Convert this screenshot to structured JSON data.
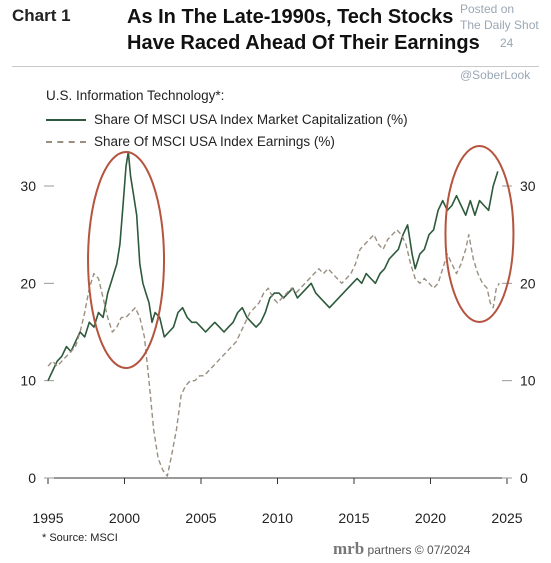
{
  "header": {
    "chart_number": "Chart 1",
    "title_line1": "As In The Late-1990s, Tech Stocks",
    "title_line2": "Have Raced Ahead Of Their Earnings"
  },
  "watermark": {
    "posted_on": "Posted on",
    "publisher": "The Daily Shot",
    "date_frag": "24",
    "handle": "@SoberLook"
  },
  "footer": {
    "source": "* Source: MSCI",
    "brand": "mrb",
    "credit": "partners © 07/2024"
  },
  "chart_data": {
    "type": "line",
    "legend_title": "U.S. Information Technology*:",
    "x_ticks": [
      "1995",
      "2000",
      "2005",
      "2010",
      "2015",
      "2020",
      "2025"
    ],
    "y_ticks_left": [
      "0",
      "10",
      "20",
      "30"
    ],
    "y_ticks_right": [
      "0",
      "10",
      "20",
      "30"
    ],
    "xlim": [
      1995,
      2025
    ],
    "ylim": [
      0,
      34
    ],
    "grid": false,
    "legend_placement": "top-left",
    "annotations": [
      "red ellipse around late-1990s peak",
      "red ellipse around 2022-2024"
    ],
    "series": [
      {
        "name": "Share Of MSCI USA Index Market Capitalization (%)",
        "style": "solid",
        "color": "#2d5a3c",
        "points": [
          [
            1995.0,
            10.0
          ],
          [
            1995.3,
            11.0
          ],
          [
            1995.6,
            12.0
          ],
          [
            1995.9,
            12.5
          ],
          [
            1996.2,
            13.5
          ],
          [
            1996.5,
            13.0
          ],
          [
            1996.8,
            14.0
          ],
          [
            1997.1,
            15.0
          ],
          [
            1997.4,
            14.5
          ],
          [
            1997.7,
            16.0
          ],
          [
            1998.0,
            15.5
          ],
          [
            1998.3,
            17.0
          ],
          [
            1998.6,
            16.5
          ],
          [
            1998.9,
            19.0
          ],
          [
            1999.2,
            20.5
          ],
          [
            1999.5,
            22.0
          ],
          [
            1999.7,
            24.0
          ],
          [
            1999.9,
            28.0
          ],
          [
            2000.1,
            32.0
          ],
          [
            2000.25,
            33.5
          ],
          [
            2000.4,
            31.0
          ],
          [
            2000.6,
            29.0
          ],
          [
            2000.8,
            27.0
          ],
          [
            2001.0,
            22.0
          ],
          [
            2001.2,
            20.0
          ],
          [
            2001.4,
            19.0
          ],
          [
            2001.6,
            18.0
          ],
          [
            2001.8,
            16.0
          ],
          [
            2002.0,
            17.0
          ],
          [
            2002.3,
            16.5
          ],
          [
            2002.6,
            14.5
          ],
          [
            2002.9,
            15.0
          ],
          [
            2003.2,
            15.5
          ],
          [
            2003.5,
            17.0
          ],
          [
            2003.8,
            17.5
          ],
          [
            2004.1,
            16.5
          ],
          [
            2004.4,
            16.0
          ],
          [
            2004.7,
            16.0
          ],
          [
            2005.0,
            15.5
          ],
          [
            2005.3,
            15.0
          ],
          [
            2005.6,
            15.5
          ],
          [
            2005.9,
            16.0
          ],
          [
            2006.2,
            15.5
          ],
          [
            2006.5,
            15.0
          ],
          [
            2006.8,
            15.5
          ],
          [
            2007.1,
            16.0
          ],
          [
            2007.4,
            17.0
          ],
          [
            2007.7,
            17.5
          ],
          [
            2008.0,
            16.5
          ],
          [
            2008.3,
            16.0
          ],
          [
            2008.6,
            15.5
          ],
          [
            2008.9,
            16.0
          ],
          [
            2009.2,
            17.0
          ],
          [
            2009.5,
            18.5
          ],
          [
            2009.8,
            19.0
          ],
          [
            2010.1,
            19.0
          ],
          [
            2010.4,
            18.5
          ],
          [
            2010.7,
            19.0
          ],
          [
            2011.0,
            19.5
          ],
          [
            2011.3,
            18.5
          ],
          [
            2011.6,
            19.0
          ],
          [
            2011.9,
            19.5
          ],
          [
            2012.2,
            20.0
          ],
          [
            2012.5,
            19.0
          ],
          [
            2012.8,
            18.5
          ],
          [
            2013.1,
            18.0
          ],
          [
            2013.4,
            17.5
          ],
          [
            2013.7,
            18.0
          ],
          [
            2014.0,
            18.5
          ],
          [
            2014.3,
            19.0
          ],
          [
            2014.6,
            19.5
          ],
          [
            2014.9,
            20.0
          ],
          [
            2015.2,
            20.5
          ],
          [
            2015.5,
            20.0
          ],
          [
            2015.8,
            21.0
          ],
          [
            2016.1,
            20.5
          ],
          [
            2016.4,
            20.0
          ],
          [
            2016.7,
            21.0
          ],
          [
            2017.0,
            21.5
          ],
          [
            2017.3,
            22.5
          ],
          [
            2017.6,
            23.0
          ],
          [
            2017.9,
            23.5
          ],
          [
            2018.2,
            25.0
          ],
          [
            2018.5,
            26.0
          ],
          [
            2018.8,
            23.0
          ],
          [
            2019.0,
            21.5
          ],
          [
            2019.3,
            23.0
          ],
          [
            2019.6,
            23.5
          ],
          [
            2019.9,
            25.0
          ],
          [
            2020.2,
            25.5
          ],
          [
            2020.5,
            27.5
          ],
          [
            2020.8,
            28.5
          ],
          [
            2021.1,
            27.5
          ],
          [
            2021.4,
            28.0
          ],
          [
            2021.7,
            29.0
          ],
          [
            2022.0,
            28.0
          ],
          [
            2022.3,
            27.0
          ],
          [
            2022.6,
            28.5
          ],
          [
            2022.9,
            27.0
          ],
          [
            2023.2,
            28.5
          ],
          [
            2023.5,
            28.0
          ],
          [
            2023.8,
            27.5
          ],
          [
            2024.1,
            30.0
          ],
          [
            2024.4,
            31.5
          ]
        ]
      },
      {
        "name": "Share Of MSCI USA Index Earnings (%)",
        "style": "dashed",
        "color": "#9a8f80",
        "points": [
          [
            1995.0,
            11.5
          ],
          [
            1995.3,
            12.0
          ],
          [
            1995.6,
            11.5
          ],
          [
            1995.9,
            12.0
          ],
          [
            1996.2,
            12.5
          ],
          [
            1996.5,
            13.0
          ],
          [
            1996.8,
            13.5
          ],
          [
            1997.1,
            15.0
          ],
          [
            1997.4,
            17.0
          ],
          [
            1997.7,
            19.5
          ],
          [
            1998.0,
            21.0
          ],
          [
            1998.3,
            20.5
          ],
          [
            1998.6,
            18.5
          ],
          [
            1998.9,
            16.5
          ],
          [
            1999.2,
            15.0
          ],
          [
            1999.5,
            15.5
          ],
          [
            1999.8,
            16.5
          ],
          [
            2000.1,
            16.5
          ],
          [
            2000.4,
            17.0
          ],
          [
            2000.7,
            17.5
          ],
          [
            2001.0,
            16.5
          ],
          [
            2001.3,
            14.5
          ],
          [
            2001.6,
            10.0
          ],
          [
            2001.9,
            5.0
          ],
          [
            2002.2,
            2.0
          ],
          [
            2002.5,
            0.8
          ],
          [
            2002.8,
            0.2
          ],
          [
            2003.1,
            2.5
          ],
          [
            2003.4,
            5.0
          ],
          [
            2003.7,
            8.5
          ],
          [
            2004.0,
            9.5
          ],
          [
            2004.3,
            10.0
          ],
          [
            2004.6,
            10.0
          ],
          [
            2004.9,
            10.5
          ],
          [
            2005.2,
            10.5
          ],
          [
            2005.5,
            11.0
          ],
          [
            2005.8,
            11.5
          ],
          [
            2006.1,
            12.0
          ],
          [
            2006.4,
            12.5
          ],
          [
            2006.7,
            13.0
          ],
          [
            2007.0,
            13.5
          ],
          [
            2007.3,
            14.0
          ],
          [
            2007.6,
            15.0
          ],
          [
            2007.9,
            16.0
          ],
          [
            2008.2,
            17.0
          ],
          [
            2008.5,
            17.5
          ],
          [
            2008.8,
            18.0
          ],
          [
            2009.1,
            19.0
          ],
          [
            2009.4,
            19.5
          ],
          [
            2009.7,
            18.5
          ],
          [
            2010.0,
            18.0
          ],
          [
            2010.3,
            18.5
          ],
          [
            2010.6,
            19.0
          ],
          [
            2010.9,
            19.5
          ],
          [
            2011.2,
            19.0
          ],
          [
            2011.5,
            19.5
          ],
          [
            2011.8,
            20.0
          ],
          [
            2012.1,
            20.5
          ],
          [
            2012.4,
            21.0
          ],
          [
            2012.7,
            21.5
          ],
          [
            2013.0,
            21.0
          ],
          [
            2013.3,
            21.5
          ],
          [
            2013.6,
            21.0
          ],
          [
            2013.9,
            20.5
          ],
          [
            2014.2,
            20.0
          ],
          [
            2014.5,
            20.5
          ],
          [
            2014.8,
            21.0
          ],
          [
            2015.1,
            22.0
          ],
          [
            2015.4,
            23.5
          ],
          [
            2015.7,
            24.0
          ],
          [
            2016.0,
            24.5
          ],
          [
            2016.3,
            25.0
          ],
          [
            2016.6,
            24.0
          ],
          [
            2016.9,
            23.5
          ],
          [
            2017.2,
            24.5
          ],
          [
            2017.5,
            25.0
          ],
          [
            2017.8,
            25.5
          ],
          [
            2018.1,
            25.0
          ],
          [
            2018.4,
            24.0
          ],
          [
            2018.7,
            22.0
          ],
          [
            2019.0,
            20.5
          ],
          [
            2019.3,
            20.0
          ],
          [
            2019.6,
            20.5
          ],
          [
            2019.9,
            20.0
          ],
          [
            2020.2,
            19.5
          ],
          [
            2020.5,
            20.0
          ],
          [
            2020.8,
            21.5
          ],
          [
            2021.1,
            23.0
          ],
          [
            2021.4,
            22.0
          ],
          [
            2021.7,
            21.0
          ],
          [
            2022.0,
            22.0
          ],
          [
            2022.3,
            23.5
          ],
          [
            2022.5,
            25.0
          ],
          [
            2022.8,
            22.5
          ],
          [
            2023.1,
            21.0
          ],
          [
            2023.4,
            20.0
          ],
          [
            2023.7,
            19.5
          ],
          [
            2023.9,
            18.0
          ],
          [
            2024.1,
            17.5
          ],
          [
            2024.3,
            19.5
          ],
          [
            2024.5,
            20.0
          ]
        ]
      }
    ]
  }
}
